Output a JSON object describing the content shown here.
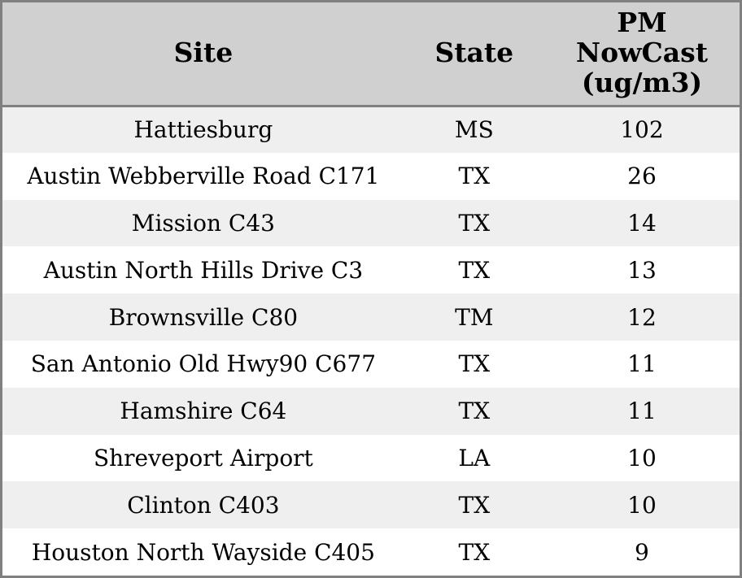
{
  "chart_data": {
    "type": "table",
    "title": "",
    "columns": [
      {
        "key": "site",
        "label": "Site"
      },
      {
        "key": "state",
        "label": "State"
      },
      {
        "key": "pm",
        "label": "PM\nNowCast\n(ug/m3)"
      }
    ],
    "rows": [
      {
        "site": "Hattiesburg",
        "state": "MS",
        "pm": "102"
      },
      {
        "site": "Austin Webberville Road C171",
        "state": "TX",
        "pm": "26"
      },
      {
        "site": "Mission C43",
        "state": "TX",
        "pm": "14"
      },
      {
        "site": "Austin North Hills Drive C3",
        "state": "TX",
        "pm": "13"
      },
      {
        "site": "Brownsville C80",
        "state": "TM",
        "pm": "12"
      },
      {
        "site": "San Antonio Old Hwy90 C677",
        "state": "TX",
        "pm": "11"
      },
      {
        "site": "Hamshire C64",
        "state": "TX",
        "pm": "11"
      },
      {
        "site": "Shreveport Airport",
        "state": "LA",
        "pm": "10"
      },
      {
        "site": "Clinton C403",
        "state": "TX",
        "pm": "10"
      },
      {
        "site": "Houston North Wayside C405",
        "state": "TX",
        "pm": "9"
      }
    ]
  },
  "colors": {
    "header_bg": "#d0d0d0",
    "row_odd_bg": "#efefef",
    "row_even_bg": "#ffffff",
    "border": "#808080",
    "text": "#000000"
  }
}
